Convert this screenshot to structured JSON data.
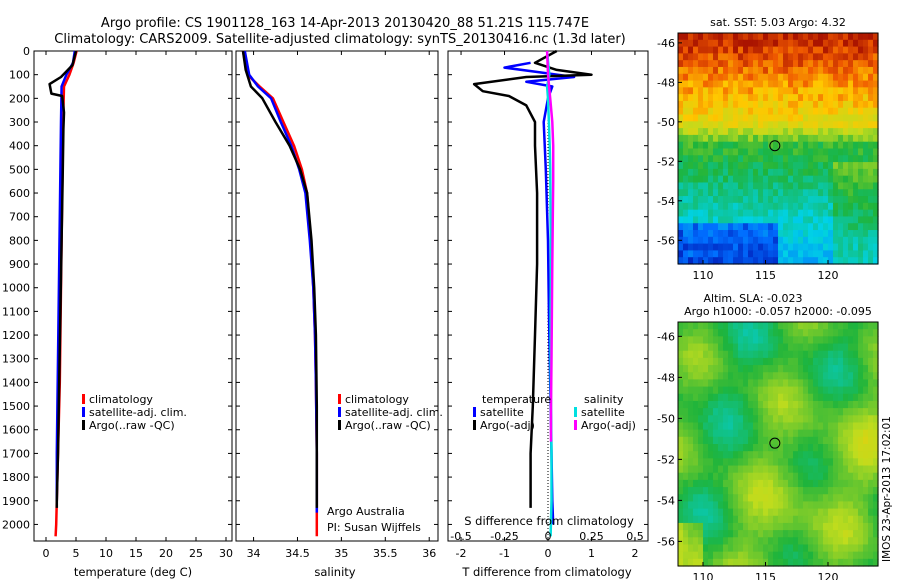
{
  "header": {
    "title_line1": "Argo profile: CS 1901128_163 14-Apr-2013 20130420_88 51.21S 115.747E",
    "title_line2": "Climatology: CARS2009. Satellite-adjusted climatology: synTS_20130416.nc (1.3d later)"
  },
  "colors": {
    "climatology": "#ff0000",
    "satellite": "#0000ff",
    "argo": "#000000",
    "satellite_s": "#00e0e0",
    "argo_s": "#ff00ff"
  },
  "chart_data": [
    {
      "type": "line",
      "name": "temperature-panel",
      "xlabel": "temperature (deg C)",
      "ylabel": "",
      "xlim": [
        -2,
        31
      ],
      "ylim": [
        2070,
        0
      ],
      "xticks": [
        0,
        5,
        10,
        15,
        20,
        25,
        30
      ],
      "yticks": [
        0,
        100,
        200,
        300,
        400,
        500,
        600,
        700,
        800,
        900,
        1000,
        1100,
        1200,
        1300,
        1400,
        1500,
        1600,
        1700,
        1800,
        1900,
        2000
      ],
      "legend": [
        "climatology",
        "satellite-adj. clim.",
        "Argo(..raw -QC)"
      ],
      "legend_position": "center",
      "series": [
        {
          "name": "climatology",
          "color": "#ff0000",
          "x": [
            5.1,
            4.6,
            3.9,
            3.0,
            2.9,
            2.8,
            2.7,
            2.6,
            2.5,
            2.4,
            2.3,
            2.1,
            1.9,
            1.7,
            1.6
          ],
          "y": [
            0,
            50,
            100,
            150,
            250,
            400,
            600,
            800,
            1000,
            1200,
            1400,
            1600,
            1800,
            2000,
            2050
          ]
        },
        {
          "name": "satellite-adj. clim.",
          "color": "#0000ff",
          "x": [
            4.8,
            4.5,
            3.4,
            2.6,
            2.5,
            2.4,
            2.3,
            2.2,
            2.1,
            2.0,
            1.9,
            1.8,
            1.8
          ],
          "y": [
            0,
            50,
            100,
            150,
            300,
            500,
            700,
            900,
            1100,
            1300,
            1500,
            1700,
            1900
          ]
        },
        {
          "name": "Argo(..raw -QC)",
          "color": "#000000",
          "x": [
            5.0,
            4.4,
            2.5,
            0.6,
            0.9,
            2.7,
            3.0,
            2.9,
            2.8,
            2.6,
            2.4,
            2.2,
            2.0,
            1.8,
            1.8
          ],
          "y": [
            0,
            60,
            110,
            140,
            180,
            190,
            260,
            330,
            500,
            800,
            1100,
            1400,
            1700,
            1900,
            1930
          ]
        }
      ]
    },
    {
      "type": "line",
      "name": "salinity-panel",
      "xlabel": "salinity",
      "ylabel": "",
      "xlim": [
        33.8,
        36.1
      ],
      "ylim": [
        2070,
        0
      ],
      "xticks": [
        34,
        34.5,
        35,
        35.5,
        36
      ],
      "xtick_labels": [
        "34",
        "34.5",
        "35",
        "35.5",
        "36"
      ],
      "legend": [
        "climatology",
        "satellite-adj. clim.",
        "Argo(..raw -QC)"
      ],
      "legend_position": "center-right",
      "annotations": [
        "Argo Australia",
        "PI: Susan Wijffels"
      ],
      "series": [
        {
          "name": "climatology",
          "color": "#ff0000",
          "x": [
            33.88,
            33.93,
            34.07,
            34.22,
            34.34,
            34.46,
            34.55,
            34.61,
            34.65,
            34.68,
            34.7,
            34.71,
            34.72,
            34.72
          ],
          "y": [
            0,
            100,
            150,
            200,
            300,
            400,
            500,
            600,
            800,
            1000,
            1200,
            1400,
            1700,
            2050
          ]
        },
        {
          "name": "satellite-adj. clim.",
          "color": "#0000ff",
          "x": [
            33.9,
            33.95,
            34.05,
            34.2,
            34.31,
            34.43,
            34.52,
            34.59,
            34.64,
            34.68,
            34.7,
            34.71,
            34.72,
            34.72
          ],
          "y": [
            0,
            100,
            150,
            200,
            300,
            400,
            500,
            600,
            800,
            1000,
            1200,
            1400,
            1700,
            1950
          ]
        },
        {
          "name": "Argo(..raw -QC)",
          "color": "#000000",
          "x": [
            33.88,
            33.91,
            33.97,
            34.1,
            34.25,
            34.41,
            34.53,
            34.61,
            34.66,
            34.69,
            34.71,
            34.72,
            34.72
          ],
          "y": [
            0,
            80,
            150,
            200,
            300,
            400,
            500,
            600,
            800,
            1000,
            1200,
            1500,
            1930
          ]
        }
      ]
    },
    {
      "type": "line",
      "name": "difference-panel",
      "xlabel": "T difference from climatology",
      "xlabel_top": "S difference from climatology",
      "ylabel": "",
      "xlim": [
        -2.3,
        2.3
      ],
      "ylim": [
        2070,
        0
      ],
      "xticks": [
        -2,
        -1,
        0,
        1,
        2
      ],
      "s_xtick_labels": [
        "-0.5",
        "-0.25",
        "0",
        "0.25",
        "0.5"
      ],
      "s_xticks": [
        -0.5,
        -0.25,
        0,
        0.25,
        0.5
      ],
      "legend_temperature_title": "temperature",
      "legend_salinity_title": "salinity",
      "legend_temperature": [
        "satellite",
        "Argo(-adj)"
      ],
      "legend_salinity": [
        "satellite",
        "Argo(-adj)"
      ],
      "series": [
        {
          "name": "T satellite",
          "color": "#0000ff",
          "x": [
            -0.4,
            -1.0,
            -0.2,
            0.6,
            -0.5,
            0.1,
            0.0,
            -0.1,
            -0.05,
            0.0,
            0.02,
            0.05,
            0.08,
            0.1,
            0.12
          ],
          "y": [
            50,
            70,
            90,
            110,
            130,
            150,
            200,
            300,
            500,
            800,
            1100,
            1400,
            1700,
            1900,
            2000
          ]
        },
        {
          "name": "T Argo(-adj)",
          "color": "#000000",
          "x": [
            0.2,
            -0.3,
            0.2,
            1.0,
            -0.5,
            -1.7,
            -1.5,
            -0.9,
            -0.5,
            -0.3,
            -0.3,
            -0.25,
            -0.25,
            -0.3,
            -0.35,
            -0.4,
            -0.4,
            -0.4
          ],
          "y": [
            0,
            50,
            80,
            100,
            110,
            140,
            170,
            190,
            230,
            300,
            400,
            600,
            900,
            1200,
            1500,
            1700,
            1850,
            1930
          ]
        },
        {
          "name": "S satellite",
          "color": "#00e0e0",
          "x": [
            -0.02,
            0.03,
            -0.02,
            0.0,
            0.02,
            0.04,
            0.05,
            0.06,
            0.07,
            0.06,
            0.06,
            0.07,
            0.08,
            0.08,
            0.06
          ],
          "y": [
            0,
            100,
            150,
            200,
            300,
            400,
            500,
            700,
            900,
            1100,
            1300,
            1500,
            1700,
            1900,
            2050
          ]
        },
        {
          "name": "S Argo(-adj)",
          "color": "#ff00ff",
          "x": [
            -0.02,
            0.0,
            0.05,
            0.1,
            0.12,
            0.12,
            0.11,
            0.1,
            0.09,
            0.08,
            0.07,
            0.07
          ],
          "y": [
            0,
            100,
            200,
            300,
            400,
            550,
            700,
            900,
            1100,
            1300,
            1500,
            1650
          ]
        }
      ]
    },
    {
      "type": "heatmap",
      "name": "sst-map",
      "title": "sat. SST: 5.03 Argo: 4.32",
      "xlim": [
        108,
        124
      ],
      "ylim": [
        -57.2,
        -45.5
      ],
      "xticks": [
        110,
        115,
        120
      ],
      "yticks": [
        -46,
        -48,
        -50,
        -52,
        -54,
        -56
      ],
      "marker": {
        "lon": 115.747,
        "lat": -51.21
      }
    },
    {
      "type": "heatmap",
      "name": "sla-map",
      "title": "Altim. SLA: -0.023",
      "subtitle": "Argo h1000: -0.057 h2000: -0.095",
      "xlim": [
        108,
        124
      ],
      "ylim": [
        -57.2,
        -45.3
      ],
      "xticks": [
        110,
        115,
        120
      ],
      "yticks": [
        -46,
        -48,
        -50,
        -52,
        -54,
        -56
      ],
      "marker": {
        "lon": 115.747,
        "lat": -51.21
      }
    }
  ],
  "footer": {
    "stamp": "IMOS 23-Apr-2013 17:02:01"
  }
}
